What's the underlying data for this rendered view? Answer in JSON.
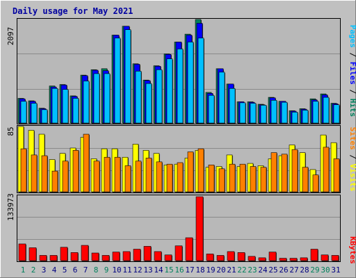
{
  "colors": {
    "background": "#c0c0c0",
    "panel": "#b8b8b8",
    "grid": "#8a8a8a",
    "title": "#0000a0",
    "hits": "#00805c",
    "files": "#0000ff",
    "pages": "#00c0ff",
    "visits": "#ffff00",
    "sites": "#ff8000",
    "kbytes": "#ff0000",
    "weekend_label": "#00805c",
    "weekday_label": "#000080"
  },
  "chart_data": [
    {
      "type": "bar",
      "title": "Daily usage for May 2021",
      "ymax_label": "2097",
      "ylim": [
        0,
        2097
      ],
      "categories": [
        "1",
        "2",
        "3",
        "4",
        "5",
        "6",
        "7",
        "8",
        "9",
        "10",
        "11",
        "12",
        "13",
        "14",
        "15",
        "16",
        "17",
        "18",
        "19",
        "20",
        "21",
        "22",
        "23",
        "24",
        "25",
        "26",
        "27",
        "28",
        "29",
        "30",
        "31"
      ],
      "weekend": [
        1,
        2,
        8,
        9,
        15,
        16,
        22,
        23,
        29,
        30
      ],
      "legend": [
        "Hits",
        "Files",
        "Pages"
      ],
      "series": [
        {
          "name": "Hits",
          "values": [
            500,
            450,
            300,
            750,
            780,
            550,
            970,
            1080,
            1100,
            1780,
            1960,
            1200,
            870,
            1160,
            1400,
            1640,
            1800,
            2097,
            620,
            1100,
            790,
            430,
            430,
            380,
            520,
            440,
            250,
            290,
            490,
            590,
            400
          ]
        },
        {
          "name": "Files",
          "values": [
            490,
            440,
            290,
            730,
            770,
            540,
            960,
            1070,
            1060,
            1780,
            1960,
            1190,
            860,
            1150,
            1390,
            1640,
            1780,
            2020,
            600,
            1100,
            790,
            430,
            420,
            370,
            510,
            440,
            240,
            280,
            470,
            570,
            390
          ]
        },
        {
          "name": "Pages",
          "values": [
            440,
            400,
            270,
            700,
            680,
            500,
            850,
            1000,
            1000,
            1720,
            1890,
            1050,
            800,
            1080,
            1300,
            1500,
            1640,
            1720,
            560,
            1030,
            700,
            410,
            400,
            360,
            460,
            420,
            220,
            260,
            440,
            520,
            370
          ]
        }
      ]
    },
    {
      "type": "bar",
      "ymax_label": "85",
      "ylim": [
        0,
        85
      ],
      "legend": [
        "Sites",
        "Visits"
      ],
      "series": [
        {
          "name": "Visits",
          "values": [
            85,
            80,
            75,
            42,
            50,
            57,
            71,
            43,
            56,
            56,
            45,
            62,
            54,
            50,
            35,
            36,
            44,
            54,
            32,
            33,
            48,
            33,
            37,
            34,
            43,
            47,
            61,
            51,
            29,
            74,
            64
          ]
        },
        {
          "name": "Sites",
          "values": [
            56,
            48,
            47,
            27,
            40,
            54,
            75,
            40,
            45,
            45,
            34,
            40,
            44,
            39,
            36,
            38,
            52,
            56,
            35,
            30,
            36,
            36,
            33,
            32,
            51,
            49,
            55,
            32,
            22,
            58,
            43
          ]
        }
      ]
    },
    {
      "type": "bar",
      "ymax_label": "133973",
      "ylim": [
        0,
        133973
      ],
      "legend": [
        "KBytes"
      ],
      "series": [
        {
          "name": "KBytes",
          "values": [
            35000,
            27000,
            11000,
            11000,
            28000,
            17000,
            32000,
            16000,
            11000,
            18000,
            19000,
            24000,
            30000,
            19000,
            12000,
            31000,
            48000,
            133973,
            14000,
            11000,
            19000,
            17000,
            9000,
            6000,
            18000,
            5000,
            5000,
            6000,
            24000,
            12000,
            11000
          ]
        }
      ]
    }
  ]
}
